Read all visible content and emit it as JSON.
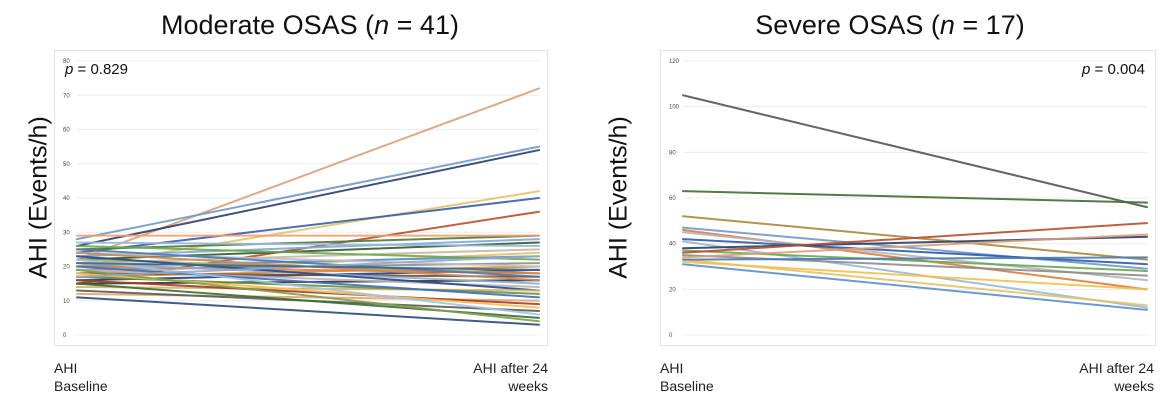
{
  "chart_data": [
    {
      "type": "line",
      "title_prefix": "Moderate OSAS (",
      "title_n": "n",
      "title_suffix": " = 41)",
      "ylabel": "AHI (Events/h)",
      "xlabel_left": [
        "AHI",
        "Baseline"
      ],
      "xlabel_right": [
        "AHI after 24",
        "weeks"
      ],
      "p_label": "p",
      "p_value": " = 0.829",
      "p_position": "top-left",
      "ylim": [
        0,
        80
      ],
      "yticks": [
        0,
        10,
        20,
        30,
        40,
        50,
        60,
        70,
        80
      ],
      "categories": [
        "AHI Baseline",
        "AHI after 24 weeks"
      ],
      "grid": true,
      "series": [
        {
          "values": [
            22,
            72
          ],
          "color": "#d9a07a"
        },
        {
          "values": [
            28,
            55
          ],
          "color": "#6f9ac7"
        },
        {
          "values": [
            26,
            54
          ],
          "color": "#2c3e6b"
        },
        {
          "values": [
            20,
            42
          ],
          "color": "#e3c36a"
        },
        {
          "values": [
            24,
            40
          ],
          "color": "#3a5fa8"
        },
        {
          "values": [
            15,
            36
          ],
          "color": "#b5502b"
        },
        {
          "values": [
            25,
            29
          ],
          "color": "#4f7a3a"
        },
        {
          "values": [
            29,
            29
          ],
          "color": "#f0a070"
        },
        {
          "values": [
            23,
            28
          ],
          "color": "#7da7d9"
        },
        {
          "values": [
            22,
            27
          ],
          "color": "#2f5c2a"
        },
        {
          "values": [
            27,
            26
          ],
          "color": "#9ab8d8"
        },
        {
          "values": [
            21,
            25
          ],
          "color": "#c7b9a0"
        },
        {
          "values": [
            18,
            24
          ],
          "color": "#e3c36a"
        },
        {
          "values": [
            20,
            23
          ],
          "color": "#5b8fcf"
        },
        {
          "values": [
            26,
            22
          ],
          "color": "#6aa84f"
        },
        {
          "values": [
            19,
            21
          ],
          "color": "#8c8c8c"
        },
        {
          "values": [
            17,
            20
          ],
          "color": "#d98c3a"
        },
        {
          "values": [
            24,
            20
          ],
          "color": "#c0c0c0"
        },
        {
          "values": [
            16,
            19
          ],
          "color": "#1f3f7a"
        },
        {
          "values": [
            22,
            18
          ],
          "color": "#a0b46a"
        },
        {
          "values": [
            20,
            18
          ],
          "color": "#e07b39"
        },
        {
          "values": [
            18,
            17
          ],
          "color": "#7a4a2a"
        },
        {
          "values": [
            25,
            17
          ],
          "color": "#4a7ab5"
        },
        {
          "values": [
            15,
            16
          ],
          "color": "#333333"
        },
        {
          "values": [
            21,
            15
          ],
          "color": "#8ab0d8"
        },
        {
          "values": [
            19,
            14
          ],
          "color": "#b5b5b5"
        },
        {
          "values": [
            23,
            13
          ],
          "color": "#2b4a8a"
        },
        {
          "values": [
            14,
            13
          ],
          "color": "#d4b36a"
        },
        {
          "values": [
            17,
            12
          ],
          "color": "#6b8e3a"
        },
        {
          "values": [
            20,
            11
          ],
          "color": "#3d6ec2"
        },
        {
          "values": [
            12,
            10
          ],
          "color": "#e6a56a"
        },
        {
          "values": [
            16,
            9
          ],
          "color": "#a23b2a"
        },
        {
          "values": [
            18,
            8
          ],
          "color": "#f2c14e"
        },
        {
          "values": [
            13,
            7
          ],
          "color": "#5a5a5a"
        },
        {
          "values": [
            22,
            6
          ],
          "color": "#9fc5e8"
        },
        {
          "values": [
            15,
            5
          ],
          "color": "#3b6e2e"
        },
        {
          "values": [
            19,
            4
          ],
          "color": "#7ea04a"
        },
        {
          "values": [
            11,
            3
          ],
          "color": "#2a4d7a"
        },
        {
          "values": [
            24,
            16
          ],
          "color": "#c98b5a"
        },
        {
          "values": [
            17,
            23
          ],
          "color": "#94a8c8"
        },
        {
          "values": [
            21,
            19
          ],
          "color": "#446688"
        }
      ]
    },
    {
      "type": "line",
      "title_prefix": "Severe OSAS (",
      "title_n": "n",
      "title_suffix": " = 17)",
      "ylabel": "AHI (Events/h)",
      "xlabel_left": [
        "AHI",
        "Baseline"
      ],
      "xlabel_right": [
        "AHI after 24",
        "weeks"
      ],
      "p_label": "p",
      "p_value": " = 0.004",
      "p_position": "top-right",
      "ylim": [
        0,
        120
      ],
      "yticks": [
        0,
        20,
        40,
        60,
        80,
        100,
        120
      ],
      "categories": [
        "AHI Baseline",
        "AHI after 24 weeks"
      ],
      "grid": true,
      "series": [
        {
          "values": [
            105,
            56
          ],
          "color": "#555555"
        },
        {
          "values": [
            63,
            58
          ],
          "color": "#3f6e2e"
        },
        {
          "values": [
            52,
            33
          ],
          "color": "#a98a3a"
        },
        {
          "values": [
            47,
            29
          ],
          "color": "#6f9ac7"
        },
        {
          "values": [
            46,
            20
          ],
          "color": "#e07b39"
        },
        {
          "values": [
            45,
            24
          ],
          "color": "#b5b5b5"
        },
        {
          "values": [
            42,
            31
          ],
          "color": "#2f5aa8"
        },
        {
          "values": [
            41,
            12
          ],
          "color": "#9ab8d8"
        },
        {
          "values": [
            38,
            43
          ],
          "color": "#2c3e6b"
        },
        {
          "values": [
            37,
            28
          ],
          "color": "#6aa84f"
        },
        {
          "values": [
            36,
            49
          ],
          "color": "#b5502b"
        },
        {
          "values": [
            35,
            26
          ],
          "color": "#8c8c8c"
        },
        {
          "values": [
            34,
            44
          ],
          "color": "#d9a07a"
        },
        {
          "values": [
            33,
            13
          ],
          "color": "#e3c36a"
        },
        {
          "values": [
            33,
            34
          ],
          "color": "#4a7ab5"
        },
        {
          "values": [
            32,
            20
          ],
          "color": "#f2c14e"
        },
        {
          "values": [
            31,
            11
          ],
          "color": "#5b8fcf"
        }
      ]
    }
  ]
}
